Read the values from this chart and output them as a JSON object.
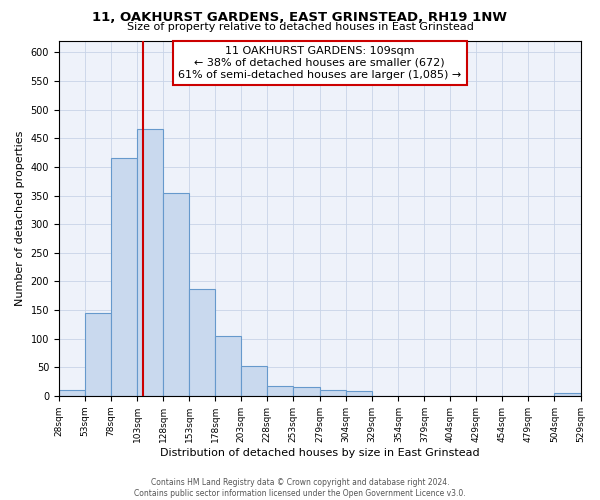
{
  "title": "11, OAKHURST GARDENS, EAST GRINSTEAD, RH19 1NW",
  "subtitle": "Size of property relative to detached houses in East Grinstead",
  "xlabel": "Distribution of detached houses by size in East Grinstead",
  "ylabel": "Number of detached properties",
  "bin_edges": [
    28,
    53,
    78,
    103,
    128,
    153,
    178,
    203,
    228,
    253,
    279,
    304,
    329,
    354,
    379,
    404,
    429,
    454,
    479,
    504,
    529
  ],
  "bar_heights": [
    10,
    144,
    415,
    467,
    355,
    187,
    105,
    53,
    18,
    15,
    10,
    8,
    0,
    0,
    0,
    0,
    0,
    0,
    0,
    5
  ],
  "bar_color": "#c9d9ee",
  "bar_edge_color": "#6699cc",
  "property_line_x": 109,
  "property_line_color": "#cc0000",
  "annotation_title": "11 OAKHURST GARDENS: 109sqm",
  "annotation_line1": "← 38% of detached houses are smaller (672)",
  "annotation_line2": "61% of semi-detached houses are larger (1,085) →",
  "annotation_box_color": "#cc0000",
  "ylim_max": 620,
  "yticks": [
    0,
    50,
    100,
    150,
    200,
    250,
    300,
    350,
    400,
    450,
    500,
    550,
    600
  ],
  "tick_labels": [
    "28sqm",
    "53sqm",
    "78sqm",
    "103sqm",
    "128sqm",
    "153sqm",
    "178sqm",
    "203sqm",
    "228sqm",
    "253sqm",
    "279sqm",
    "304sqm",
    "329sqm",
    "354sqm",
    "379sqm",
    "404sqm",
    "429sqm",
    "454sqm",
    "479sqm",
    "504sqm",
    "529sqm"
  ],
  "footer_line1": "Contains HM Land Registry data © Crown copyright and database right 2024.",
  "footer_line2": "Contains public sector information licensed under the Open Government Licence v3.0.",
  "bg_color": "#eef2fa"
}
